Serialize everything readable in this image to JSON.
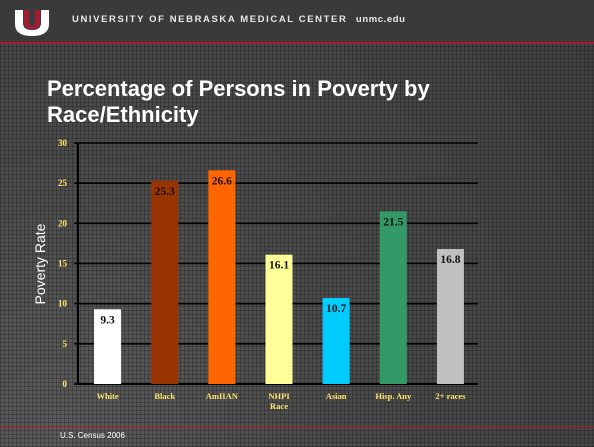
{
  "header": {
    "university": "UNIVERSITY OF NEBRASKA MEDICAL CENTER",
    "url": "unmc.edu"
  },
  "title": "Percentage of Persons in Poverty by Race/Ethnicity",
  "source": "U.S. Census 2006",
  "colors": {
    "brand_red": "#a71930",
    "tick_yellow": "#ffe66b"
  },
  "chart_data": {
    "type": "bar",
    "title": "Percentage of Persons in Poverty by Race/Ethnicity",
    "xlabel": "",
    "ylabel": "Poverty Rate",
    "ylim": [
      0,
      30
    ],
    "yticks": [
      0,
      5,
      10,
      15,
      20,
      25,
      30
    ],
    "grid": true,
    "categories": [
      "White",
      "Black",
      "AmIIAN",
      "NHPI Race",
      "Asian",
      "Hisp. Any",
      "2+ races"
    ],
    "values": [
      9.3,
      25.3,
      26.6,
      16.1,
      10.7,
      21.5,
      16.8
    ],
    "value_labels": [
      "9.3",
      "25.3",
      "26.6",
      "16.1",
      "10.7",
      "21.5",
      "16.8"
    ],
    "bar_colors": [
      "#ffffff",
      "#993300",
      "#ff6600",
      "#ffff99",
      "#00ccff",
      "#339966",
      "#c0c0c0"
    ]
  }
}
